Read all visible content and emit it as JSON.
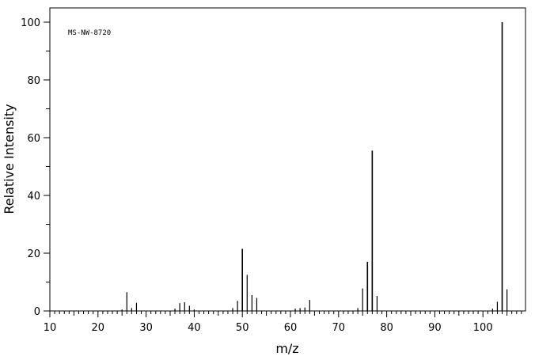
{
  "chart_data": {
    "type": "bar",
    "style": "mass-spectrum stick plot",
    "annotation": "MS-NW-8720",
    "xlabel": "m/z",
    "ylabel": "Relative Intensity",
    "xlim": [
      10,
      108
    ],
    "ylim": [
      0,
      100
    ],
    "x_ticks": [
      10,
      20,
      30,
      40,
      50,
      60,
      70,
      80,
      90,
      100
    ],
    "y_ticks": [
      0,
      20,
      40,
      60,
      80,
      100
    ],
    "grid": false,
    "legend": "none",
    "peaks": [
      {
        "mz": 25,
        "intensity": 0.5
      },
      {
        "mz": 26,
        "intensity": 6.5
      },
      {
        "mz": 27,
        "intensity": 1.0
      },
      {
        "mz": 28,
        "intensity": 2.8
      },
      {
        "mz": 36,
        "intensity": 0.8
      },
      {
        "mz": 37,
        "intensity": 2.7
      },
      {
        "mz": 38,
        "intensity": 3.0
      },
      {
        "mz": 39,
        "intensity": 1.8
      },
      {
        "mz": 40,
        "intensity": 0.5
      },
      {
        "mz": 48,
        "intensity": 1.0
      },
      {
        "mz": 49,
        "intensity": 3.5
      },
      {
        "mz": 50,
        "intensity": 21.5
      },
      {
        "mz": 51,
        "intensity": 12.5
      },
      {
        "mz": 52,
        "intensity": 5.5
      },
      {
        "mz": 53,
        "intensity": 4.5
      },
      {
        "mz": 61,
        "intensity": 0.8
      },
      {
        "mz": 62,
        "intensity": 1.0
      },
      {
        "mz": 63,
        "intensity": 1.2
      },
      {
        "mz": 64,
        "intensity": 3.8
      },
      {
        "mz": 74,
        "intensity": 1.0
      },
      {
        "mz": 75,
        "intensity": 7.8
      },
      {
        "mz": 76,
        "intensity": 17.0
      },
      {
        "mz": 77,
        "intensity": 55.5
      },
      {
        "mz": 78,
        "intensity": 5.2
      },
      {
        "mz": 102,
        "intensity": 0.8
      },
      {
        "mz": 103,
        "intensity": 3.2
      },
      {
        "mz": 104,
        "intensity": 100
      },
      {
        "mz": 105,
        "intensity": 7.5
      }
    ]
  }
}
